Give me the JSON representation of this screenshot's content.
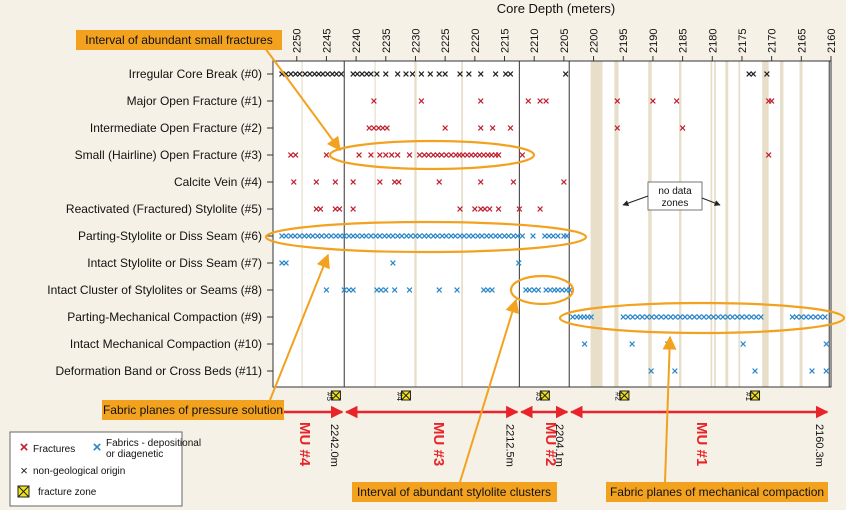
{
  "chart_data": {
    "type": "scatter",
    "title": "Core Depth (meters)",
    "x_axis": {
      "label": "Core Depth (meters)",
      "range": [
        2254,
        2160
      ],
      "reversed": true,
      "ticks": [
        2250,
        2245,
        2240,
        2235,
        2230,
        2225,
        2220,
        2215,
        2210,
        2205,
        2200,
        2195,
        2190,
        2185,
        2180,
        2175,
        2170,
        2165,
        2160
      ]
    },
    "categories": [
      "Irregular Core Break (#0)",
      "Major Open Fracture (#1)",
      "Intermediate Open Fracture (#2)",
      "Small (Hairline) Open Fracture (#3)",
      "Calcite Vein (#4)",
      "Reactivated (Fractured) Stylolite (#5)",
      "Parting-Stylolite or Diss Seam (#6)",
      "Intact Stylolite or Diss Seam (#7)",
      "Intact Cluster of Stylolites or Seams (#8)",
      "Parting-Mechanical Compaction (#9)",
      "Intact Mechanical Compaction (#10)",
      "Deformation Band or Cross Beds (#11)"
    ],
    "series": [
      {
        "name": "Fractures",
        "color": "#c0202f",
        "rows": [
          1,
          2,
          3,
          4,
          5
        ]
      },
      {
        "name": "Fabrics - depositional or diagenetic",
        "color": "#2b86c8",
        "rows": [
          6,
          7,
          8,
          9,
          10,
          11
        ]
      },
      {
        "name": "non-geological origin",
        "color": "#222222",
        "rows": [
          0
        ]
      }
    ],
    "points": {
      "0": [
        2252.5,
        2251.8,
        2251,
        2250.2,
        2249.5,
        2248.6,
        2247.8,
        2247,
        2246.3,
        2245.6,
        2244.8,
        2244,
        2243.3,
        2242.5,
        2240.5,
        2239.8,
        2239,
        2238.2,
        2237.5,
        2236.5,
        2235,
        2233,
        2231.6,
        2230.5,
        2229,
        2227.5,
        2226,
        2225,
        2222.5,
        2221,
        2219,
        2216.5,
        2214.8,
        2214,
        2204.7,
        2173.8,
        2173.1,
        2170.8
      ],
      "1": [
        2237,
        2229,
        2219,
        2211,
        2209,
        2208,
        2196,
        2190,
        2186,
        2170.5,
        2170
      ],
      "2": [
        2237.8,
        2237,
        2236.2,
        2235.5,
        2234.8,
        2225,
        2219,
        2217,
        2214,
        2196,
        2185
      ],
      "3": [
        2251,
        2250.2,
        2245,
        2239.5,
        2237.5,
        2236,
        2235,
        2234,
        2233,
        2231,
        2229.3,
        2228.5,
        2227.8,
        2227,
        2226.3,
        2225.6,
        2224.8,
        2224,
        2223.2,
        2222.6,
        2222,
        2221.3,
        2220.6,
        2219.9,
        2219.2,
        2218.5,
        2217.8,
        2217.2,
        2216.5,
        2216,
        2212,
        2170.5
      ],
      "4": [
        2250.5,
        2246.7,
        2243.5,
        2240.5,
        2236,
        2233.5,
        2232.8,
        2226,
        2219,
        2213.5,
        2205
      ],
      "5": [
        2246.7,
        2246,
        2243.5,
        2242.8,
        2240.5,
        2222.5,
        2220,
        2219,
        2218.3,
        2217.5,
        2216,
        2212.5,
        2209
      ],
      "6": [
        2252.5,
        2251.8,
        2251,
        2250.3,
        2249.5,
        2248.7,
        2248,
        2247.3,
        2246.5,
        2245.8,
        2245,
        2244.2,
        2243.4,
        2242.7,
        2242,
        2241.2,
        2240.5,
        2239.8,
        2239,
        2238.3,
        2237.5,
        2236.7,
        2236,
        2235.2,
        2234.5,
        2233.8,
        2233,
        2232.3,
        2231.5,
        2230.8,
        2230,
        2229.3,
        2228.5,
        2227.8,
        2227,
        2226.3,
        2225.5,
        2224.8,
        2224,
        2223.3,
        2222.5,
        2221.8,
        2221,
        2220.3,
        2219.5,
        2218.8,
        2218,
        2217.3,
        2216.5,
        2215.8,
        2215,
        2214.3,
        2213.5,
        2212.8,
        2212,
        2210.2,
        2208.2,
        2207.5,
        2206.8,
        2206,
        2205,
        2204.5
      ],
      "7": [
        2252.5,
        2251.8,
        2233.8,
        2212.6
      ],
      "8": [
        2245,
        2242,
        2241.2,
        2240.5,
        2236.5,
        2235.8,
        2235,
        2233.5,
        2231,
        2226,
        2223,
        2218.5,
        2217.8,
        2217.1,
        2211.4,
        2210.8,
        2210,
        2209.3,
        2208,
        2207.3,
        2206.6,
        2206,
        2205.3,
        2204.6,
        2204
      ],
      "9": [
        2203.5,
        2202.8,
        2202.2,
        2201.6,
        2201,
        2200.4,
        2195,
        2194.2,
        2193.4,
        2192.6,
        2191.8,
        2191,
        2190.2,
        2189.4,
        2188.6,
        2187.8,
        2187,
        2186.2,
        2185.4,
        2184.6,
        2183.8,
        2183,
        2182.2,
        2181.4,
        2180.6,
        2179.8,
        2179,
        2178.2,
        2177.4,
        2176.6,
        2175.8,
        2175,
        2174.2,
        2173.4,
        2172.6,
        2171.8,
        2166.5,
        2165.8,
        2165,
        2164.2,
        2163.4,
        2162.6,
        2161.8,
        2161
      ],
      "10": [
        2201.5,
        2193.5,
        2187.5,
        2174.8,
        2160.8
      ],
      "11": [
        2190.3,
        2186.3,
        2172.8,
        2163.2,
        2160.8
      ]
    },
    "no_data_zones": [
      [
        2200.5,
        2198.5
      ],
      [
        2196.5,
        2195.8
      ],
      [
        2190.8,
        2190.2
      ],
      [
        2185.6,
        2185.2
      ],
      [
        2180.3,
        2180
      ],
      [
        2179.7,
        2179.4
      ],
      [
        2177.8,
        2177.3
      ],
      [
        2175.6,
        2175.3
      ],
      [
        2171.6,
        2170.5
      ],
      [
        2168.6,
        2168
      ],
      [
        2165.3,
        2164.8
      ],
      [
        2222.3,
        2222
      ],
      [
        2230.2,
        2229.8
      ],
      [
        2236.9,
        2236.7
      ],
      [
        2249.2,
        2249
      ]
    ],
    "mu_boundaries": [
      2242.0,
      2212.5,
      2204.1,
      2160.3
    ],
    "fracture_zones": [
      {
        "depth": 2243.4,
        "label": "#5"
      },
      {
        "depth": 2231.6,
        "label": "#4"
      },
      {
        "depth": 2208.2,
        "label": "#3"
      },
      {
        "depth": 2194.8,
        "label": "#2"
      },
      {
        "depth": 2172.8,
        "label": "#1"
      }
    ],
    "mechanical_units": [
      {
        "label": "MU #4",
        "boundary_label": "2242.0m"
      },
      {
        "label": "MU #3",
        "boundary_label": "2212.5m"
      },
      {
        "label": "MU #2",
        "boundary_label": "2204.1m"
      },
      {
        "label": "MU #1",
        "boundary_label": "2160.3m"
      }
    ],
    "annotations": [
      "Interval of abundant small fractures",
      "Fabric planes of pressure solution",
      "Interval of abundant stylolite clusters",
      "Fabric planes of mechanical compaction",
      "no data zones"
    ],
    "legend": {
      "placement": "bottom-left",
      "items": [
        "Fractures",
        "Fabrics - depositional or diagenetic",
        "non-geological origin",
        "fracture zone"
      ]
    },
    "colors": {
      "fracture": "#c0202f",
      "fabric": "#2b86c8",
      "nongeo": "#222222",
      "annotation": "#f3a21f",
      "mu_arrow": "#e8232a",
      "zone": "#e8dfcb",
      "fz_fill": "#f2e21a"
    }
  }
}
